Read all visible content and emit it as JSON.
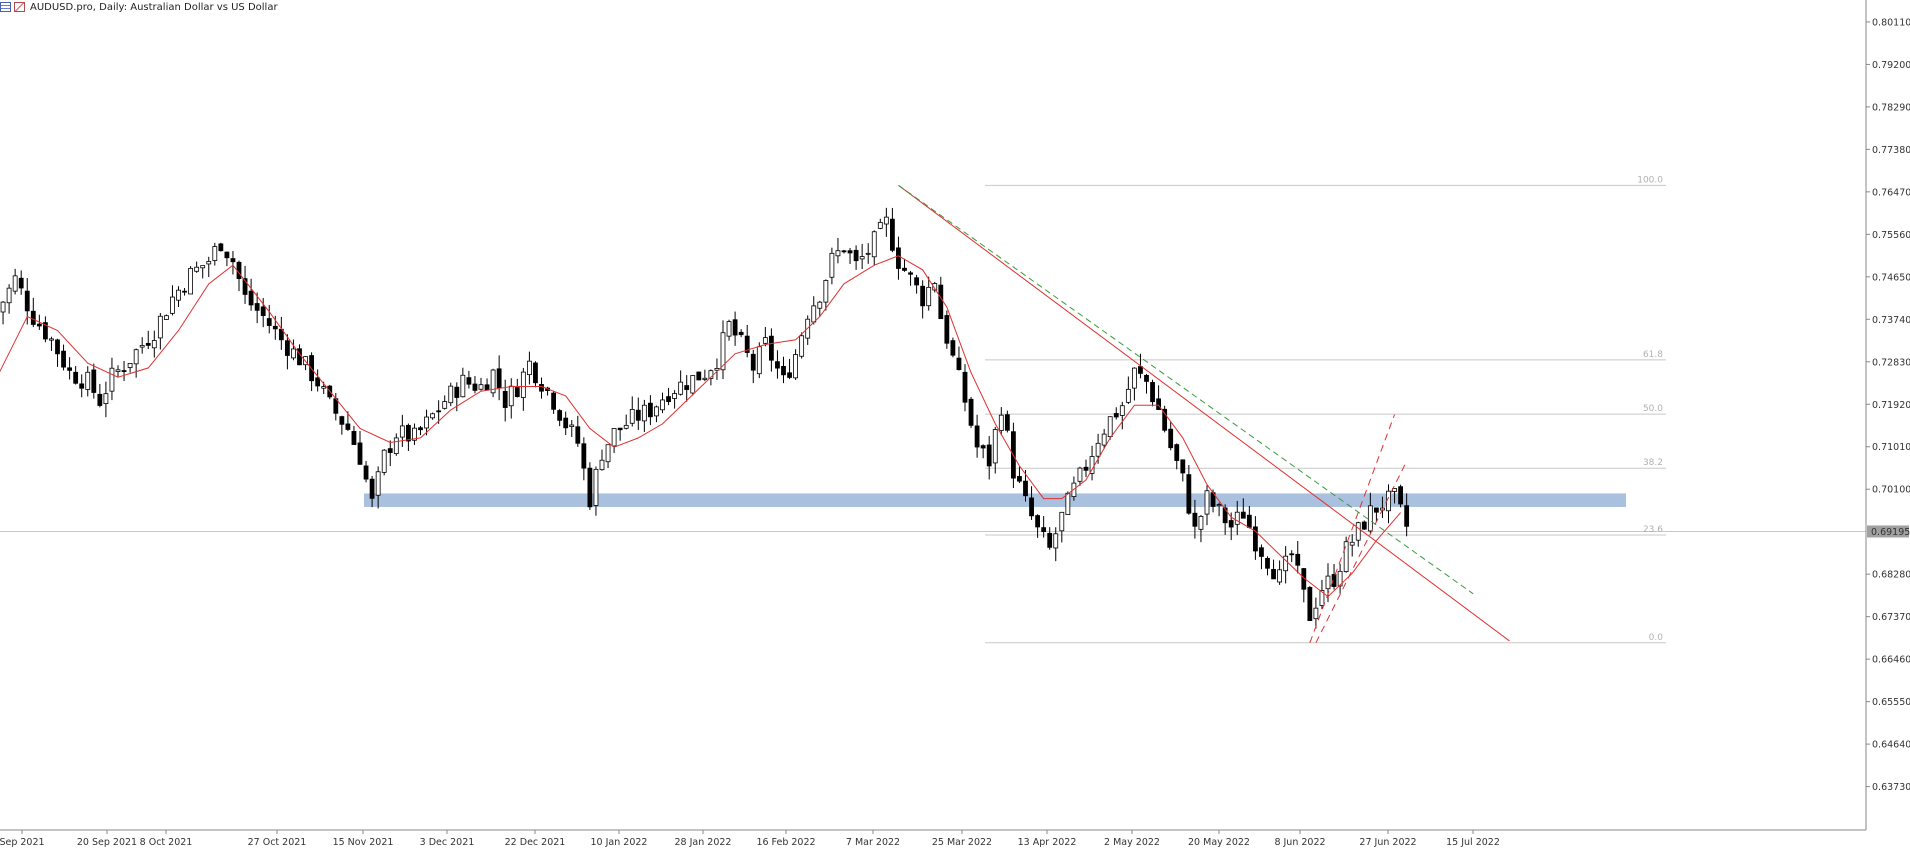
{
  "title": "AUDUSD.pro, Daily:  Australian Dollar vs US Dollar",
  "icons": [
    "bar-chart-icon",
    "indicator-icon"
  ],
  "current_price": "0.69195",
  "colors": {
    "up_candle": "#ffffff",
    "down_candle": "#000000",
    "wick": "#000000",
    "moving_average": "#e03030",
    "trendline": "#e03030",
    "dashed_trend": "#3a9a3a",
    "channel": "#e03030",
    "fib_lines": "#c8c8c8",
    "support_zone": "#a9c0de",
    "price_line": "#c8c8c8",
    "current_price_badge": "#a0a0a0"
  },
  "chart_data": {
    "type": "candlestick",
    "symbol": "AUDUSD.pro",
    "timeframe": "Daily",
    "description": "Australian Dollar vs US Dollar",
    "ylim": [
      0.628,
      0.8058
    ],
    "y_ticks": [
      "0.80110",
      "0.79200",
      "0.78290",
      "0.77380",
      "0.76470",
      "0.75560",
      "0.74650",
      "0.73740",
      "0.72830",
      "0.71920",
      "0.71010",
      "0.70100",
      "0.69195",
      "0.68280",
      "0.67370",
      "0.66460",
      "0.65550",
      "0.64640",
      "0.63730"
    ],
    "x_ticks": [
      "Sep 2021",
      "20 Sep 2021",
      "8 Oct 2021",
      "27 Oct 2021",
      "15 Nov 2021",
      "3 Dec 2021",
      "22 Dec 2021",
      "10 Jan 2022",
      "28 Jan 2022",
      "16 Feb 2022",
      "7 Mar 2022",
      "25 Mar 2022",
      "13 Apr 2022",
      "2 May 2022",
      "20 May 2022",
      "8 Jun 2022",
      "27 Jun 2022",
      "15 Jul 2022"
    ],
    "close_path": [
      [
        0,
        0.739
      ],
      [
        3,
        0.746
      ],
      [
        6,
        0.738
      ],
      [
        9,
        0.733
      ],
      [
        12,
        0.726
      ],
      [
        15,
        0.724
      ],
      [
        17,
        0.72
      ],
      [
        19,
        0.725
      ],
      [
        22,
        0.729
      ],
      [
        26,
        0.735
      ],
      [
        29,
        0.742
      ],
      [
        32,
        0.747
      ],
      [
        35,
        0.75
      ],
      [
        37,
        0.754
      ],
      [
        39,
        0.75
      ],
      [
        41,
        0.742
      ],
      [
        44,
        0.738
      ],
      [
        47,
        0.733
      ],
      [
        50,
        0.729
      ],
      [
        53,
        0.724
      ],
      [
        55,
        0.719
      ],
      [
        58,
        0.714
      ],
      [
        60,
        0.708
      ],
      [
        62,
        0.698
      ],
      [
        64,
        0.708
      ],
      [
        66,
        0.713
      ],
      [
        69,
        0.712
      ],
      [
        71,
        0.715
      ],
      [
        74,
        0.72
      ],
      [
        77,
        0.724
      ],
      [
        80,
        0.723
      ],
      [
        82,
        0.726
      ],
      [
        84,
        0.72
      ],
      [
        86,
        0.723
      ],
      [
        88,
        0.728
      ],
      [
        90,
        0.724
      ],
      [
        92,
        0.72
      ],
      [
        94,
        0.715
      ],
      [
        96,
        0.711
      ],
      [
        98,
        0.699
      ],
      [
        100,
        0.709
      ],
      [
        102,
        0.713
      ],
      [
        105,
        0.716
      ],
      [
        108,
        0.718
      ],
      [
        111,
        0.722
      ],
      [
        114,
        0.724
      ],
      [
        117,
        0.726
      ],
      [
        119,
        0.729
      ],
      [
        121,
        0.736
      ],
      [
        123,
        0.732
      ],
      [
        125,
        0.727
      ],
      [
        127,
        0.732
      ],
      [
        130,
        0.724
      ],
      [
        132,
        0.73
      ],
      [
        134,
        0.739
      ],
      [
        136,
        0.743
      ],
      [
        138,
        0.75
      ],
      [
        140,
        0.753
      ],
      [
        142,
        0.749
      ],
      [
        144,
        0.752
      ],
      [
        146,
        0.756
      ],
      [
        147,
        0.758
      ],
      [
        149,
        0.75
      ],
      [
        151,
        0.746
      ],
      [
        153,
        0.742
      ],
      [
        155,
        0.746
      ],
      [
        156,
        0.738
      ],
      [
        158,
        0.729
      ],
      [
        160,
        0.72
      ],
      [
        162,
        0.71
      ],
      [
        164,
        0.707
      ],
      [
        166,
        0.719
      ],
      [
        168,
        0.705
      ],
      [
        170,
        0.698
      ],
      [
        172,
        0.692
      ],
      [
        174,
        0.688
      ],
      [
        176,
        0.695
      ],
      [
        178,
        0.701
      ],
      [
        180,
        0.706
      ],
      [
        182,
        0.712
      ],
      [
        184,
        0.716
      ],
      [
        186,
        0.719
      ],
      [
        188,
        0.726
      ],
      [
        190,
        0.724
      ],
      [
        192,
        0.718
      ],
      [
        194,
        0.71
      ],
      [
        196,
        0.703
      ],
      [
        198,
        0.692
      ],
      [
        200,
        0.699
      ],
      [
        202,
        0.696
      ],
      [
        204,
        0.693
      ],
      [
        206,
        0.696
      ],
      [
        208,
        0.69
      ],
      [
        210,
        0.686
      ],
      [
        212,
        0.682
      ],
      [
        214,
        0.687
      ],
      [
        216,
        0.678
      ],
      [
        217,
        0.674
      ],
      [
        219,
        0.68
      ],
      [
        221,
        0.682
      ],
      [
        223,
        0.688
      ],
      [
        225,
        0.692
      ],
      [
        227,
        0.696
      ],
      [
        229,
        0.698
      ],
      [
        231,
        0.699
      ],
      [
        233,
        0.693
      ]
    ],
    "moving_average": [
      [
        0,
        0.725
      ],
      [
        5,
        0.738
      ],
      [
        10,
        0.735
      ],
      [
        15,
        0.728
      ],
      [
        20,
        0.725
      ],
      [
        25,
        0.727
      ],
      [
        30,
        0.735
      ],
      [
        35,
        0.745
      ],
      [
        39,
        0.749
      ],
      [
        45,
        0.739
      ],
      [
        50,
        0.73
      ],
      [
        55,
        0.722
      ],
      [
        60,
        0.714
      ],
      [
        65,
        0.711
      ],
      [
        70,
        0.712
      ],
      [
        75,
        0.718
      ],
      [
        80,
        0.722
      ],
      [
        85,
        0.723
      ],
      [
        90,
        0.723
      ],
      [
        94,
        0.721
      ],
      [
        98,
        0.714
      ],
      [
        102,
        0.71
      ],
      [
        106,
        0.712
      ],
      [
        110,
        0.715
      ],
      [
        114,
        0.72
      ],
      [
        118,
        0.725
      ],
      [
        122,
        0.73
      ],
      [
        127,
        0.732
      ],
      [
        132,
        0.733
      ],
      [
        136,
        0.738
      ],
      [
        140,
        0.745
      ],
      [
        145,
        0.749
      ],
      [
        149,
        0.751
      ],
      [
        153,
        0.748
      ],
      [
        157,
        0.74
      ],
      [
        161,
        0.726
      ],
      [
        165,
        0.715
      ],
      [
        169,
        0.706
      ],
      [
        173,
        0.699
      ],
      [
        176,
        0.699
      ],
      [
        180,
        0.703
      ],
      [
        184,
        0.712
      ],
      [
        188,
        0.719
      ],
      [
        192,
        0.719
      ],
      [
        196,
        0.712
      ],
      [
        200,
        0.702
      ],
      [
        204,
        0.695
      ],
      [
        208,
        0.692
      ],
      [
        212,
        0.687
      ],
      [
        216,
        0.682
      ],
      [
        220,
        0.678
      ],
      [
        224,
        0.683
      ],
      [
        228,
        0.69
      ],
      [
        232,
        0.696
      ]
    ],
    "fibonacci": {
      "high": 0.7661,
      "low": 0.6681,
      "levels": [
        {
          "label": "100.0",
          "price": 0.7661
        },
        {
          "label": "61.8",
          "price": 0.7287
        },
        {
          "label": "50.0",
          "price": 0.7171
        },
        {
          "label": "38.2",
          "price": 0.7055
        },
        {
          "label": "23.6",
          "price": 0.6912
        },
        {
          "label": "0.0",
          "price": 0.6681
        }
      ]
    },
    "support_zone": {
      "top": 0.7001,
      "bottom": 0.6972
    },
    "trendline": {
      "from": [
        149,
        0.7661
      ],
      "to": [
        250,
        0.6685
      ]
    },
    "dashed_trendline": {
      "from": [
        149,
        0.7661
      ],
      "to": [
        244,
        0.6786
      ]
    },
    "channel_lines": [
      {
        "from": [
          217,
          0.6681
        ],
        "to": [
          231,
          0.717
        ]
      },
      {
        "from": [
          218,
          0.6681
        ],
        "to": [
          233,
          0.707
        ]
      }
    ]
  }
}
